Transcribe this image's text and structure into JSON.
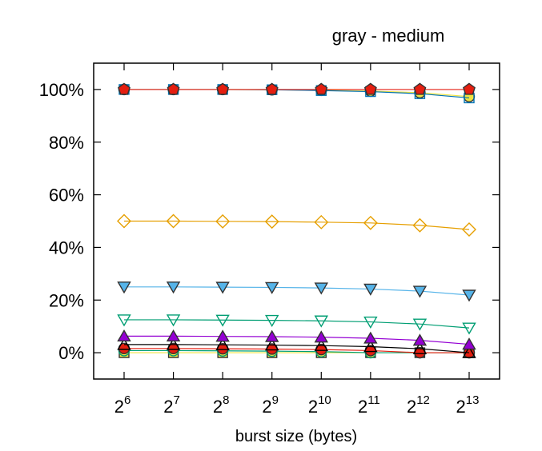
{
  "chart_data": {
    "type": "line",
    "title": "gray - medium",
    "xlabel": "burst size (bytes)",
    "ylabel": "",
    "x_base": "2",
    "x_exponents": [
      "6",
      "7",
      "8",
      "9",
      "10",
      "11",
      "12",
      "13"
    ],
    "x": [
      64,
      128,
      256,
      512,
      1024,
      2048,
      4096,
      8192
    ],
    "x_scale": "log2",
    "ylim": [
      -10,
      110
    ],
    "y_ticks": [
      0,
      20,
      40,
      60,
      80,
      100
    ],
    "y_tick_labels": [
      "0%",
      "20%",
      "40%",
      "60%",
      "80%",
      "100%"
    ],
    "grid": false,
    "legend": "none",
    "series": [
      {
        "color": "#e51e10",
        "marker": "pentagon-filled",
        "values": [
          100,
          100,
          100,
          100,
          100,
          100,
          100,
          100
        ]
      },
      {
        "color": "#0072b2",
        "marker": "square-hollow",
        "values": [
          100,
          100,
          100,
          99.9,
          99.6,
          99.2,
          98.4,
          96.8
        ]
      },
      {
        "color": "#f0e442",
        "marker": "circle-filled",
        "values": [
          100,
          100,
          100,
          99.9,
          99.7,
          99.4,
          98.8,
          97.3
        ]
      },
      {
        "color": "#e69f00",
        "marker": "diamond-hollow",
        "values": [
          50,
          50,
          49.9,
          49.8,
          49.6,
          49.3,
          48.4,
          46.8
        ]
      },
      {
        "color": "#56b4e9",
        "marker": "triangle-down-filled",
        "values": [
          25,
          25,
          24.9,
          24.8,
          24.6,
          24.2,
          23.4,
          21.9
        ]
      },
      {
        "color": "#009e73",
        "marker": "triangle-down-hollow",
        "values": [
          12.5,
          12.5,
          12.4,
          12.3,
          12.1,
          11.7,
          10.9,
          9.4
        ]
      },
      {
        "color": "#9400d3",
        "marker": "triangle-up-filled",
        "values": [
          6.3,
          6.3,
          6.2,
          6.1,
          5.9,
          5.5,
          4.7,
          3.2
        ]
      },
      {
        "color": "#000000",
        "marker": "triangle-up-hollow",
        "values": [
          3.1,
          3.1,
          3.0,
          2.9,
          2.7,
          2.3,
          1.5,
          0
        ]
      },
      {
        "color": "#e51e10",
        "marker": "circle-filled",
        "values": [
          1.6,
          1.6,
          1.5,
          1.4,
          1.2,
          0.8,
          0,
          0
        ]
      },
      {
        "color": "#009e73",
        "marker": "circle-hollow",
        "values": [
          0.8,
          0.8,
          0.7,
          0.6,
          0.4,
          0,
          0,
          0
        ]
      },
      {
        "color": "#f0e442",
        "marker": "square-filled",
        "values": [
          0,
          0,
          0,
          0,
          0,
          0,
          0,
          0
        ]
      }
    ]
  }
}
